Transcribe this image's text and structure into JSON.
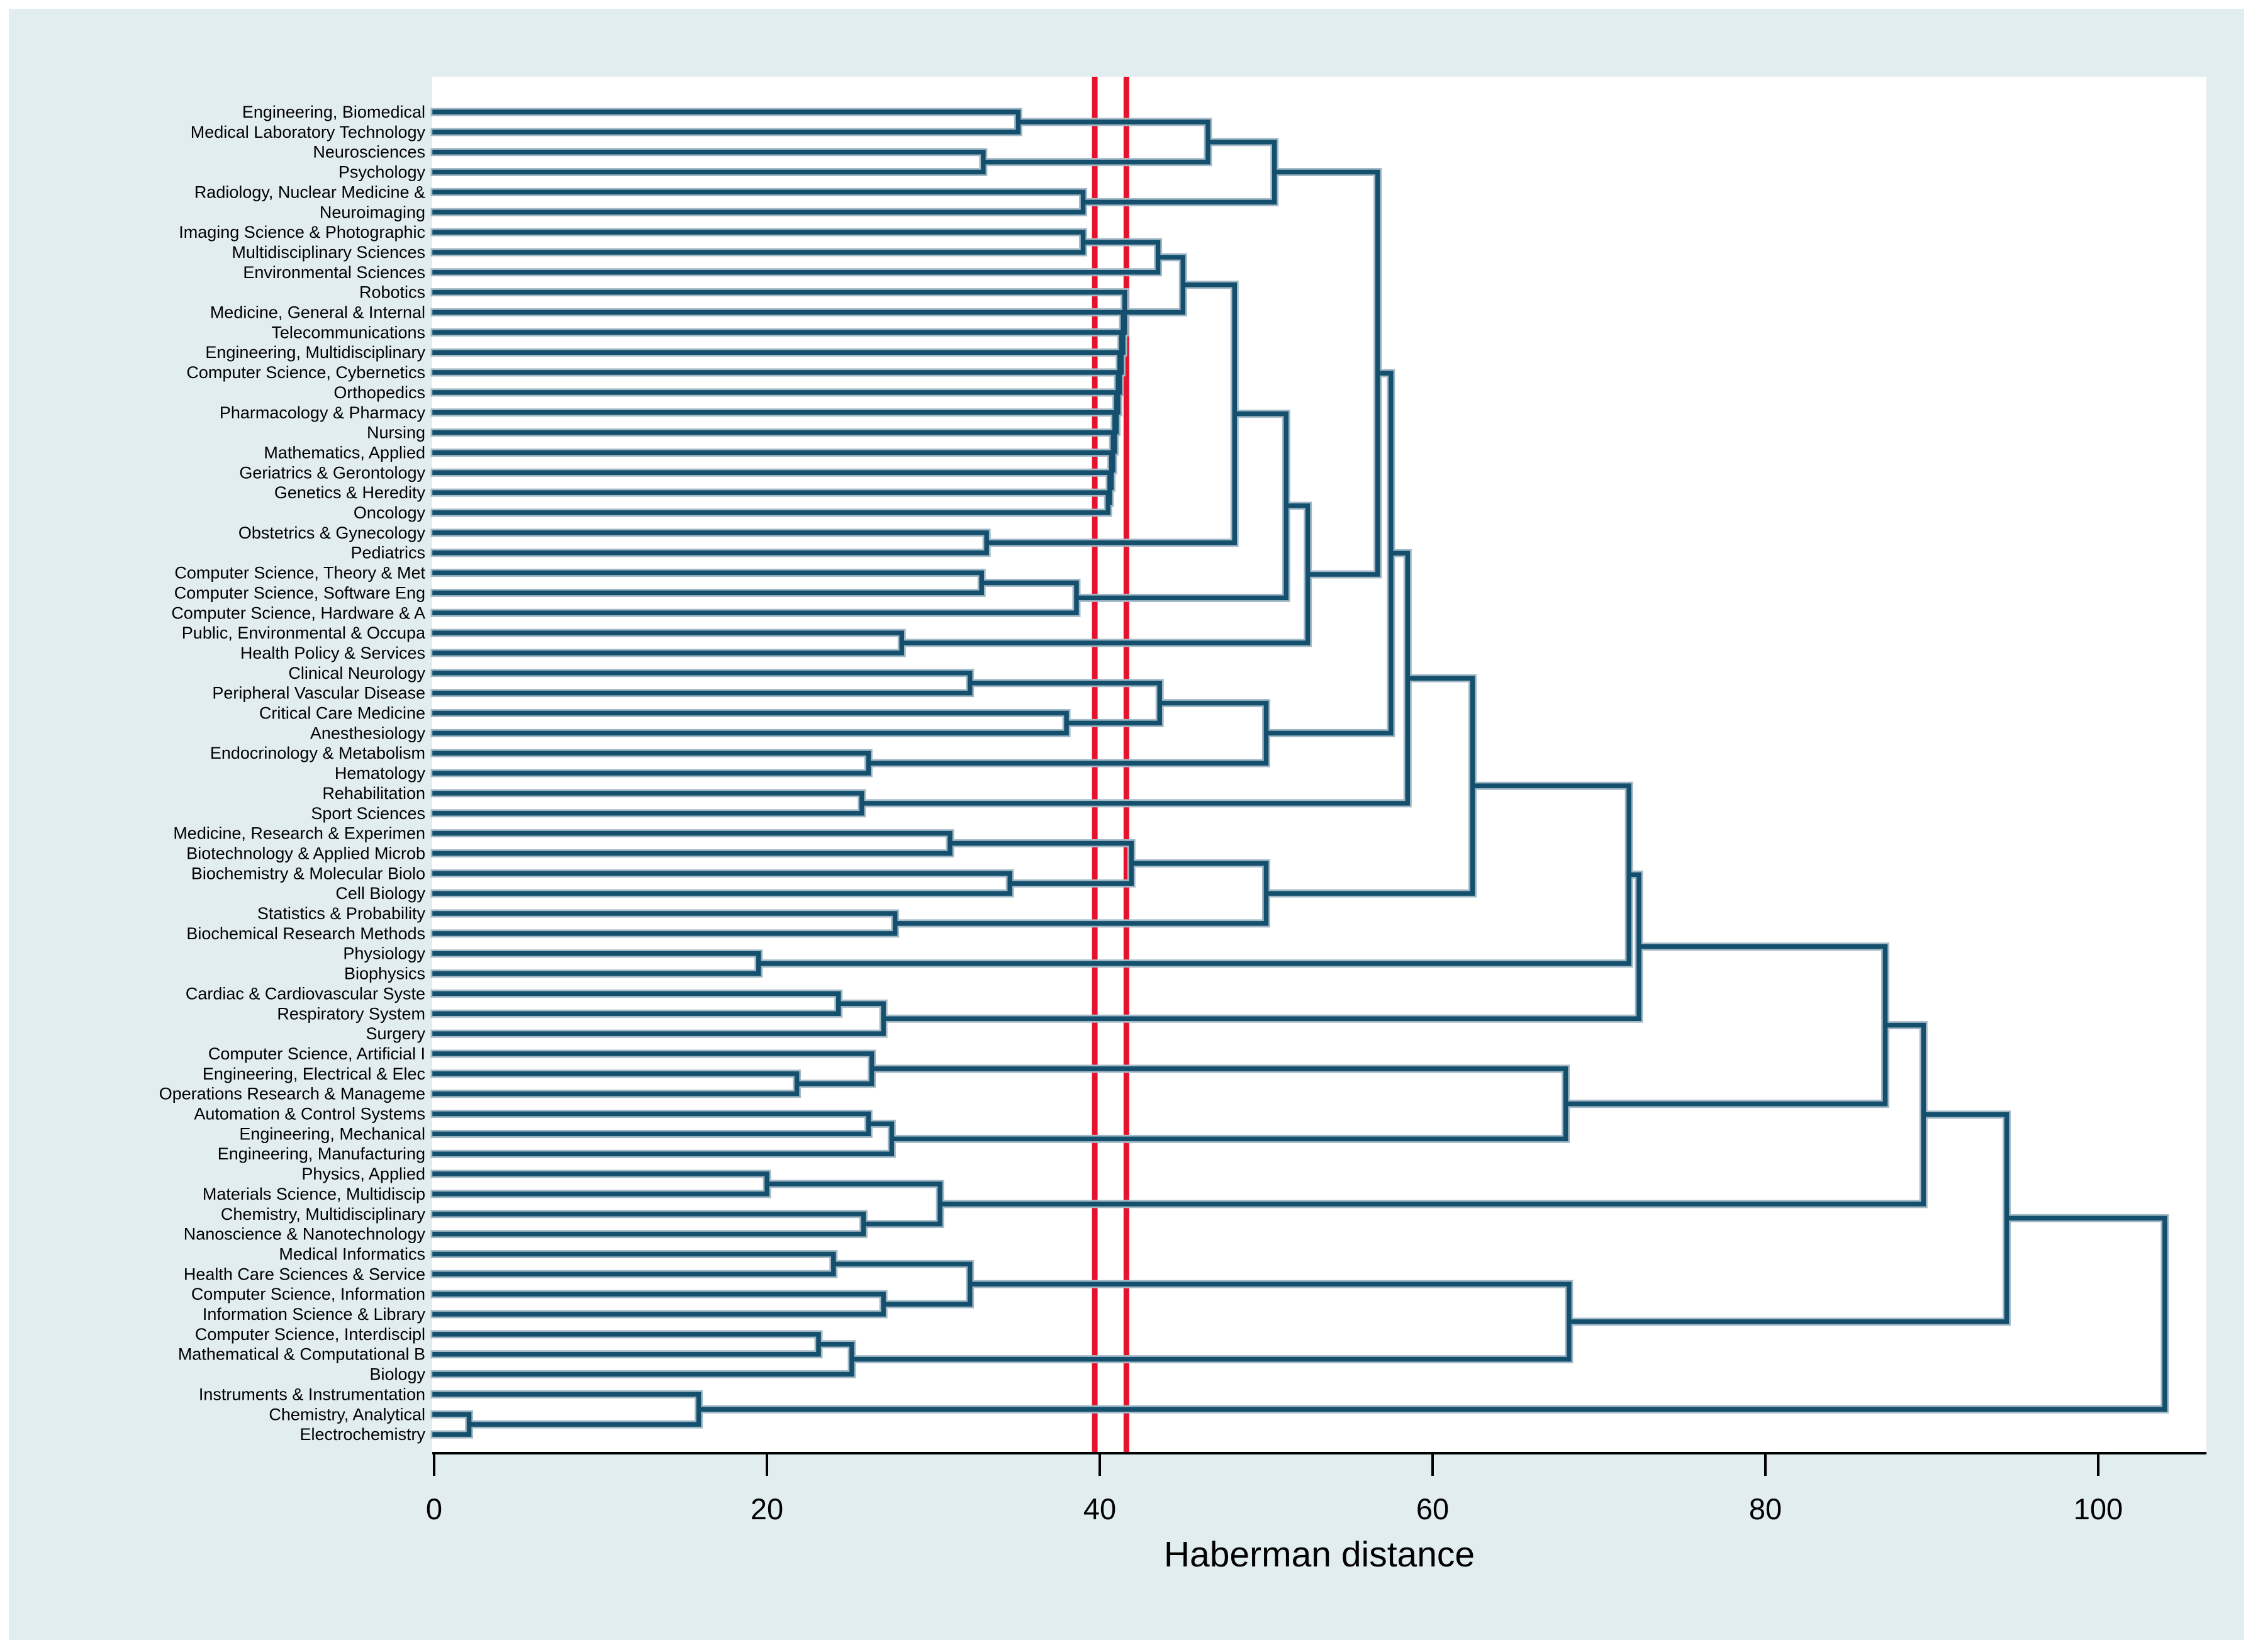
{
  "figure": {
    "kind": "hierarchical-cluster-dendrogram",
    "background_color": "#e2edf0",
    "plot_background_color": "#ffffff",
    "line_color": "#14506e",
    "line_halo_color": "#a3b9c6",
    "cut_line_color": "#e8112d",
    "axis_color": "#000000"
  },
  "chart_data": {
    "type": "dendrogram",
    "orientation": "horizontal",
    "title": "",
    "xlabel": "Haberman distance",
    "x_ticks": [
      0,
      20,
      40,
      60,
      80,
      100
    ],
    "xlim": [
      0,
      106.5
    ],
    "grid": false,
    "cut_lines": [
      39.7,
      41.6
    ],
    "leaves": [
      "Engineering, Biomedical",
      "Medical Laboratory Technology",
      "Neurosciences",
      "Psychology",
      "Radiology, Nuclear Medicine &",
      "Neuroimaging",
      "Imaging Science & Photographic",
      "Multidisciplinary Sciences",
      "Environmental Sciences",
      "Robotics",
      "Medicine, General & Internal",
      "Telecommunications",
      "Engineering, Multidisciplinary",
      "Computer Science, Cybernetics",
      "Orthopedics",
      "Pharmacology & Pharmacy",
      "Nursing",
      "Mathematics, Applied",
      "Geriatrics & Gerontology",
      "Genetics & Heredity",
      "Oncology",
      "Obstetrics & Gynecology",
      "Pediatrics",
      "Computer Science, Theory & Met",
      "Computer Science, Software Eng",
      "Computer Science, Hardware & A",
      "Public, Environmental & Occupa",
      "Health Policy & Services",
      "Clinical Neurology",
      "Peripheral Vascular Disease",
      "Critical Care Medicine",
      "Anesthesiology",
      "Endocrinology & Metabolism",
      "Hematology",
      "Rehabilitation",
      "Sport Sciences",
      "Medicine, Research & Experimen",
      "Biotechnology & Applied Microb",
      "Biochemistry & Molecular Biolo",
      "Cell Biology",
      "Statistics & Probability",
      "Biochemical Research Methods",
      "Physiology",
      "Biophysics",
      "Cardiac & Cardiovascular Syste",
      "Respiratory System",
      "Surgery",
      "Computer Science, Artificial I",
      "Engineering, Electrical & Elec",
      "Operations Research & Manageme",
      "Automation & Control Systems",
      "Engineering, Mechanical",
      "Engineering, Manufacturing",
      "Physics, Applied",
      "Materials Science, Multidiscip",
      "Chemistry, Multidisciplinary",
      "Nanoscience & Nanotechnology",
      "Medical Informatics",
      "Health Care Sciences & Service",
      "Computer Science, Information",
      "Information Science & Library",
      "Computer Science, Interdiscipl",
      "Mathematical & Computational B",
      "Biology",
      "Instruments & Instrumentation",
      "Chemistry, Analytical",
      "Electrochemistry"
    ],
    "merges": [
      [
        "L1",
        "L2",
        35.1
      ],
      [
        "L3",
        "L4",
        33.0
      ],
      [
        "M1",
        "M2",
        46.5
      ],
      [
        "L5",
        "L6",
        39.0
      ],
      [
        "M3",
        "M4",
        50.5
      ],
      [
        "L7",
        "L8",
        39.0
      ],
      [
        "M6",
        "L9",
        43.5
      ],
      [
        "L20",
        "L21",
        40.5
      ],
      [
        "L19",
        "M8",
        40.6
      ],
      [
        "L18",
        "M9",
        40.7
      ],
      [
        "L17",
        "M10",
        40.8
      ],
      [
        "L16",
        "M11",
        40.9
      ],
      [
        "L15",
        "M12",
        41.0
      ],
      [
        "L14",
        "M13",
        41.1
      ],
      [
        "L13",
        "M14",
        41.2
      ],
      [
        "L12",
        "M15",
        41.3
      ],
      [
        "L11",
        "M16",
        41.4
      ],
      [
        "L10",
        "M17",
        41.5
      ],
      [
        "M7",
        "M18",
        45.0
      ],
      [
        "L22",
        "L23",
        33.2
      ],
      [
        "M19",
        "M20",
        48.1
      ],
      [
        "L24",
        "L25",
        32.9
      ],
      [
        "M22",
        "L26",
        38.6
      ],
      [
        "M21",
        "M23",
        51.2
      ],
      [
        "L27",
        "L28",
        28.1
      ],
      [
        "M24",
        "M25",
        52.5
      ],
      [
        "M5",
        "M26",
        56.7
      ],
      [
        "L29",
        "L30",
        32.2
      ],
      [
        "L31",
        "L32",
        38.0
      ],
      [
        "M28",
        "M29",
        43.6
      ],
      [
        "L33",
        "L34",
        26.1
      ],
      [
        "M30",
        "M31",
        50.0
      ],
      [
        "M27",
        "M32",
        57.5
      ],
      [
        "L35",
        "L36",
        25.7
      ],
      [
        "M33",
        "M34",
        58.5
      ],
      [
        "L37",
        "L38",
        31.0
      ],
      [
        "L39",
        "L40",
        34.6
      ],
      [
        "M36",
        "M37",
        41.9
      ],
      [
        "L41",
        "L42",
        27.7
      ],
      [
        "M38",
        "M39",
        50.0
      ],
      [
        "M35",
        "M40",
        62.4
      ],
      [
        "L43",
        "L44",
        19.5
      ],
      [
        "L45",
        "L46",
        24.3
      ],
      [
        "M43",
        "L47",
        27.0
      ],
      [
        "M41",
        "M42",
        71.8
      ],
      [
        "M45",
        "M44",
        72.4
      ],
      [
        "L49",
        "L50",
        21.8
      ],
      [
        "L48",
        "M47",
        26.3
      ],
      [
        "L51",
        "L52",
        26.1
      ],
      [
        "M49",
        "L53",
        27.5
      ],
      [
        "M48",
        "M50",
        68.0
      ],
      [
        "M46",
        "M51",
        87.2
      ],
      [
        "L54",
        "L55",
        20.0
      ],
      [
        "L56",
        "L57",
        25.8
      ],
      [
        "M53",
        "M54",
        30.4
      ],
      [
        "M52",
        "M55",
        89.5
      ],
      [
        "L58",
        "L59",
        24.0
      ],
      [
        "L60",
        "L61",
        27.0
      ],
      [
        "M57",
        "M58",
        32.2
      ],
      [
        "L62",
        "L63",
        23.1
      ],
      [
        "M60",
        "L64",
        25.1
      ],
      [
        "M59",
        "M61",
        68.2
      ],
      [
        "M56",
        "M62",
        94.5
      ],
      [
        "L66",
        "L67",
        2.1
      ],
      [
        "L65",
        "M64",
        15.9
      ],
      [
        "M63",
        "M65",
        104.0
      ]
    ]
  }
}
